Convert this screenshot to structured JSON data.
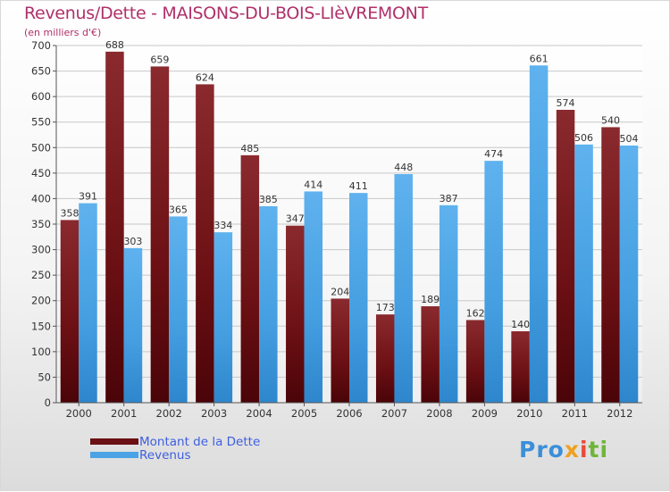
{
  "header": {
    "title": "Revenus/Dette - MAISONS-DU-BOIS-LIèVREMONT",
    "subtitle": "(en milliers d'€)"
  },
  "chart_data": {
    "type": "bar",
    "categories": [
      "2000",
      "2001",
      "2002",
      "2003",
      "2004",
      "2005",
      "2006",
      "2007",
      "2008",
      "2009",
      "2010",
      "2011",
      "2012"
    ],
    "series": [
      {
        "name": "Montant de la Dette",
        "color": "#7a1518",
        "values": [
          358,
          688,
          659,
          624,
          485,
          347,
          204,
          173,
          189,
          162,
          140,
          574,
          540
        ]
      },
      {
        "name": "Revenus",
        "color": "#4ba3e6",
        "values": [
          391,
          303,
          365,
          334,
          385,
          414,
          411,
          448,
          387,
          474,
          661,
          506,
          504
        ]
      }
    ],
    "ylim": [
      0,
      700
    ],
    "yticks": [
      0,
      50,
      100,
      150,
      200,
      250,
      300,
      350,
      400,
      450,
      500,
      550,
      600,
      650,
      700
    ],
    "grid": true,
    "legend_position": "bottom-left"
  },
  "legend": {
    "items": [
      {
        "label": "Montant de la Dette",
        "color": "#6b1014"
      },
      {
        "label": "Revenus",
        "color": "#4ba3e6"
      }
    ]
  },
  "branding": {
    "logo_parts": [
      "Pro",
      "x",
      "i",
      "ti"
    ]
  }
}
